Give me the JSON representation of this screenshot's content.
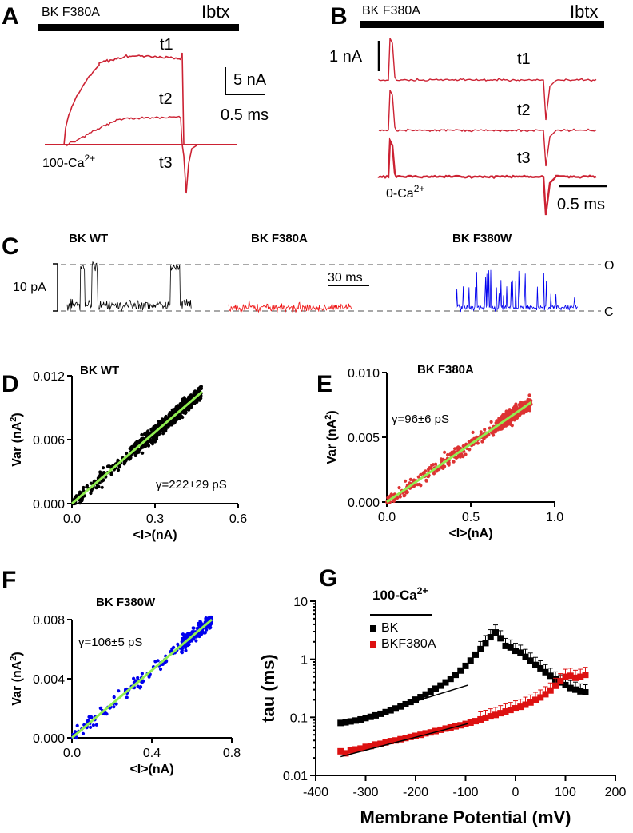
{
  "colors": {
    "red": "#cc2233",
    "black": "#000000",
    "blue": "#0000ee",
    "green": "#90ee50",
    "gray": "#8c8c8c",
    "scatter_red": "#dd3333"
  },
  "panelA": {
    "label": "A",
    "bar_left": "BK F380A",
    "bar_right": "Ibtx",
    "traces": [
      "t1",
      "t2",
      "t3"
    ],
    "condition": "100-Ca",
    "cond_sup": "2+",
    "scale_y": "5 nA",
    "scale_x": "0.5 ms"
  },
  "panelB": {
    "label": "B",
    "bar_left": "BK F380A",
    "bar_right": "Ibtx",
    "traces": [
      "t1",
      "t2",
      "t3"
    ],
    "condition": "0-Ca",
    "cond_sup": "2+",
    "scale_y": "1 nA",
    "scale_x": "0.5 ms"
  },
  "panelC": {
    "label": "C",
    "titles": [
      "BK WT",
      "BK F380A",
      "BK F380W"
    ],
    "scale_y": "10 pA",
    "scale_x": "30 ms",
    "open": "O",
    "closed": "C"
  },
  "chart_data": [
    {
      "id": "D",
      "type": "scatter",
      "label": "D",
      "title": "BK WT",
      "xlabel": "<I>(nA)",
      "ylabel": "Var (nA",
      "ylabel_sup": "2",
      "ylabel_end": ")",
      "xlim": [
        0,
        0.6
      ],
      "ylim": [
        0,
        0.012
      ],
      "xticks": [
        "0.0",
        "0.3",
        "0.6"
      ],
      "yticks": [
        "0.000",
        "0.006",
        "0.012"
      ],
      "fit": {
        "x": [
          0,
          0.47
        ],
        "y": [
          0,
          0.0105
        ]
      },
      "annotation": "γ=222±29 pS",
      "n_points": 650,
      "x_range": [
        0,
        0.47
      ]
    },
    {
      "id": "E",
      "type": "scatter",
      "label": "E",
      "title": "BK F380A",
      "xlabel": "<I>(nA)",
      "ylabel": "Var (nA",
      "ylabel_sup": "2",
      "ylabel_end": ")",
      "xlim": [
        0,
        1.0
      ],
      "ylim": [
        0,
        0.01
      ],
      "xticks": [
        "0.0",
        "0.5",
        "1.0"
      ],
      "yticks": [
        "0.000",
        "0.005",
        "0.010"
      ],
      "fit": {
        "x": [
          0,
          0.86
        ],
        "y": [
          0,
          0.0077
        ]
      },
      "annotation": "γ=96±6 pS",
      "n_points": 550,
      "x_range": [
        0,
        0.86
      ]
    },
    {
      "id": "F",
      "type": "scatter",
      "label": "F",
      "title": "BK F380W",
      "xlabel": "<I>(nA)",
      "ylabel": "Var (nA",
      "ylabel_sup": "2",
      "ylabel_end": ")",
      "xlim": [
        0,
        0.8
      ],
      "ylim": [
        0,
        0.008
      ],
      "xticks": [
        "0.0",
        "0.4",
        "0.8"
      ],
      "yticks": [
        "0.000",
        "0.004",
        "0.008"
      ],
      "fit": {
        "x": [
          0,
          0.7
        ],
        "y": [
          0,
          0.008
        ]
      },
      "annotation": "γ=106±5 pS",
      "n_points": 330,
      "x_range": [
        0,
        0.7
      ]
    },
    {
      "id": "G",
      "type": "scatter",
      "label": "G",
      "log_y": true,
      "xlabel": "Membrane Potential (mV)",
      "ylabel": "tau (ms)",
      "xlim": [
        -400,
        200
      ],
      "ylim": [
        0.01,
        10
      ],
      "xticks": [
        "-400",
        "-300",
        "-200",
        "-100",
        "0",
        "100",
        "200"
      ],
      "yticks": [
        "0.01",
        "0.1",
        "1",
        "10"
      ],
      "legend_title": "100-Ca",
      "legend_title_sup": "2+",
      "series": [
        {
          "name": "BK",
          "color": "#000000",
          "x": [
            -350,
            -340,
            -330,
            -320,
            -310,
            -300,
            -290,
            -280,
            -270,
            -260,
            -250,
            -240,
            -230,
            -220,
            -210,
            -200,
            -190,
            -180,
            -170,
            -160,
            -150,
            -140,
            -130,
            -120,
            -110,
            -100,
            -90,
            -80,
            -70,
            -60,
            -50,
            -40,
            -30,
            -20,
            -10,
            0,
            10,
            20,
            30,
            40,
            50,
            60,
            70,
            80,
            90,
            100,
            110,
            120,
            130,
            140
          ],
          "y": [
            0.08,
            0.082,
            0.085,
            0.088,
            0.092,
            0.097,
            0.102,
            0.108,
            0.115,
            0.123,
            0.132,
            0.142,
            0.154,
            0.168,
            0.184,
            0.202,
            0.223,
            0.248,
            0.278,
            0.312,
            0.352,
            0.4,
            0.46,
            0.54,
            0.64,
            0.77,
            0.95,
            1.2,
            1.5,
            1.9,
            2.4,
            2.9,
            2.3,
            1.7,
            1.6,
            1.4,
            1.3,
            1.1,
            0.95,
            0.8,
            0.7,
            0.6,
            0.52,
            0.45,
            0.4,
            0.36,
            0.32,
            0.3,
            0.28,
            0.27
          ],
          "fit": {
            "x": [
              -350,
              -95
            ],
            "y": [
              0.075,
              0.36
            ]
          }
        },
        {
          "name": "BKF380A",
          "color": "#dd1111",
          "x": [
            -350,
            -340,
            -330,
            -320,
            -310,
            -300,
            -290,
            -280,
            -270,
            -260,
            -250,
            -240,
            -230,
            -220,
            -210,
            -200,
            -190,
            -180,
            -170,
            -160,
            -150,
            -140,
            -130,
            -120,
            -110,
            -100,
            -90,
            -80,
            -70,
            -60,
            -50,
            -40,
            -30,
            -20,
            -10,
            0,
            10,
            20,
            30,
            40,
            50,
            60,
            70,
            80,
            90,
            100,
            110,
            120,
            130,
            140
          ],
          "y": [
            0.026,
            0.024,
            0.027,
            0.028,
            0.029,
            0.031,
            0.032,
            0.034,
            0.035,
            0.037,
            0.039,
            0.04,
            0.042,
            0.044,
            0.046,
            0.048,
            0.05,
            0.053,
            0.055,
            0.058,
            0.061,
            0.064,
            0.067,
            0.07,
            0.073,
            0.077,
            0.081,
            0.086,
            0.092,
            0.098,
            0.104,
            0.11,
            0.118,
            0.126,
            0.134,
            0.143,
            0.152,
            0.165,
            0.18,
            0.2,
            0.22,
            0.25,
            0.29,
            0.35,
            0.42,
            0.5,
            0.52,
            0.48,
            0.5,
            0.54
          ],
          "fit": {
            "x": [
              -350,
              -95
            ],
            "y": [
              0.021,
              0.078
            ]
          }
        }
      ]
    }
  ]
}
